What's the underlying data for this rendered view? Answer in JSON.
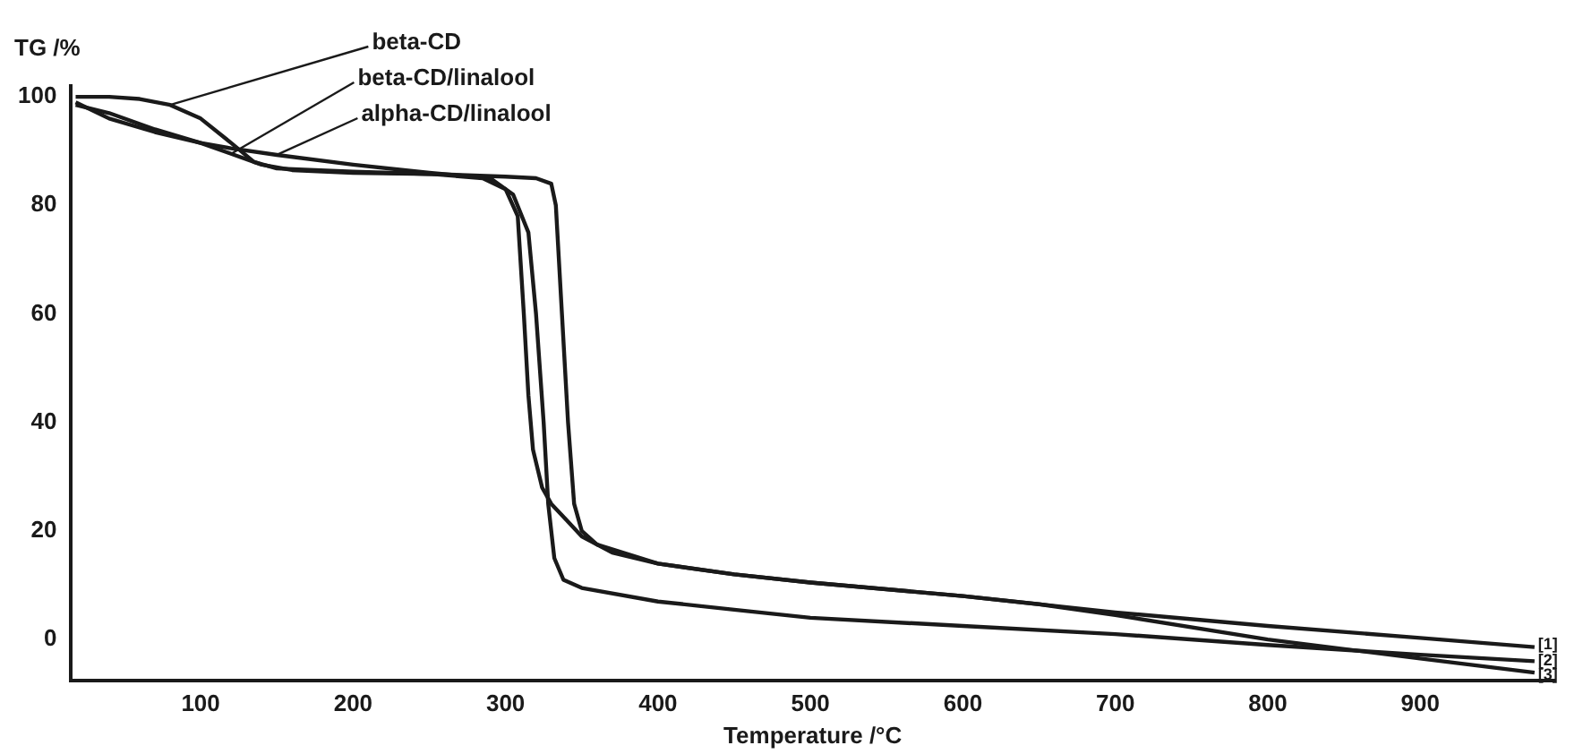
{
  "chart_data": {
    "type": "line",
    "xlabel": "Temperature /°C",
    "ylabel": "TG /%",
    "xlim": [
      15,
      988
    ],
    "xticks": [
      100,
      200,
      300,
      400,
      500,
      600,
      700,
      800,
      900
    ],
    "ylim": [
      -7.5,
      102
    ],
    "yticks": [
      0,
      20,
      40,
      60,
      80,
      100
    ],
    "grid": false,
    "legend": false,
    "marker": "none",
    "line_style": "solid",
    "series": [
      {
        "name": "beta-CD",
        "color": "#1a1a1a",
        "x": [
          18,
          40,
          60,
          80,
          100,
          120,
          135,
          150,
          200,
          250,
          300,
          320,
          330,
          333,
          337,
          341,
          345,
          350,
          360,
          400,
          450,
          500,
          600,
          700,
          800,
          900,
          975
        ],
        "values": [
          100,
          100,
          99.6,
          98.5,
          96,
          91.5,
          88,
          86.8,
          86.2,
          85.8,
          85.3,
          85,
          84,
          80,
          60,
          40,
          25,
          20,
          17.5,
          14,
          12,
          10.5,
          8,
          5,
          2.5,
          0.3,
          -1.4
        ]
      },
      {
        "name": "alpha-CD/linalool",
        "color": "#1a1a1a",
        "x": [
          18,
          40,
          70,
          100,
          120,
          150,
          200,
          250,
          290,
          305,
          315,
          320,
          325,
          328,
          332,
          338,
          350,
          400,
          450,
          500,
          600,
          700,
          800,
          900,
          975
        ],
        "values": [
          99,
          96,
          93.5,
          91.5,
          90.5,
          89.3,
          87.5,
          86,
          85,
          82,
          75,
          60,
          40,
          25,
          15,
          11,
          9.5,
          7,
          5.5,
          4,
          2.5,
          1,
          -1,
          -2.8,
          -4
        ]
      },
      {
        "name": "beta-CD/linalool",
        "color": "#1a1a1a",
        "x": [
          18,
          40,
          70,
          100,
          120,
          140,
          160,
          200,
          250,
          285,
          300,
          308,
          312,
          315,
          318,
          324,
          330,
          340,
          350,
          370,
          400,
          450,
          500,
          600,
          650,
          700,
          800,
          900,
          975
        ],
        "values": [
          98.5,
          97,
          94,
          91.5,
          89.5,
          87.5,
          86.5,
          86,
          85.8,
          85,
          83,
          78,
          60,
          45,
          35,
          28,
          25,
          22,
          19,
          16,
          14,
          12,
          10.5,
          8,
          6.5,
          4.5,
          0,
          -3.5,
          -6.1
        ]
      }
    ],
    "annotations": [
      "[1]",
      "[2]",
      "[3]"
    ]
  }
}
